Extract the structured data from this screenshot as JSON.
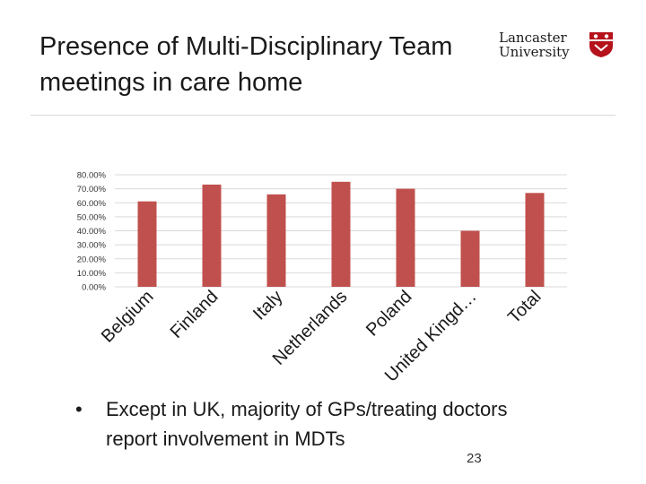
{
  "slide": {
    "title": "Presence of Multi-Disciplinary Team meetings in care home",
    "logo": {
      "line1": "Lancaster",
      "line2": "University"
    },
    "bullet_symbol": "•",
    "bullet": "Except in UK, majority of GPs/treating doctors report involvement in MDTs",
    "page_number": "23"
  },
  "colors": {
    "bar": "#c0504d",
    "grid": "#d9d9d9",
    "logo_red": "#b5121b"
  },
  "chart_data": {
    "type": "bar",
    "title": "",
    "xlabel": "",
    "ylabel": "",
    "categories": [
      "Belgium",
      "Finland",
      "Italy",
      "Netherlands",
      "Poland",
      "United Kingd…",
      "Total"
    ],
    "values": [
      61,
      73,
      66,
      75,
      70,
      40,
      67
    ],
    "ylim": [
      0,
      80
    ],
    "yticks": [
      "0.00%",
      "10.00%",
      "20.00%",
      "30.00%",
      "40.00%",
      "50.00%",
      "60.00%",
      "70.00%",
      "80.00%"
    ],
    "grid": true,
    "legend": "none"
  }
}
